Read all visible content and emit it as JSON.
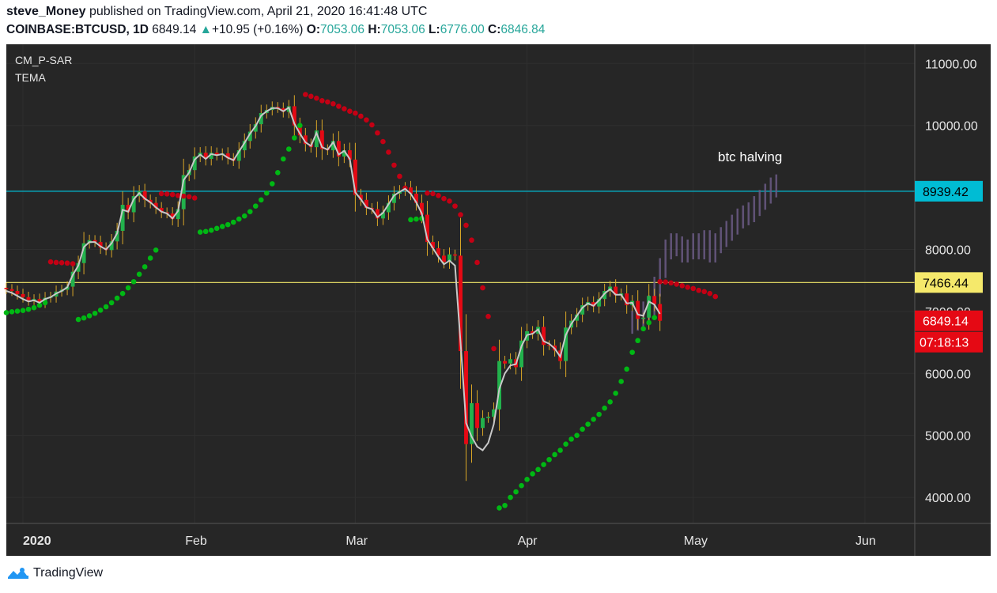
{
  "header": {
    "author": "steve_Money",
    "published_text": "published on TradingView.com, April 21, 2020 16:41:48 UTC",
    "symbol": "COINBASE:BTCUSD, 1D",
    "last": "6849.14",
    "change_arrow": "▲",
    "change": "+10.95 (+0.16%)",
    "o_label": "O:",
    "o_value": "7053.06",
    "h_label": "H:",
    "h_value": "7053.06",
    "l_label": "L:",
    "l_value": "6776.00",
    "c_label": "C:",
    "c_value": "6846.84"
  },
  "indicators": [
    "CM_P-SAR",
    "TEMA"
  ],
  "footer": {
    "logo_text": "TradingView",
    "logo_icon": "tradingview-logo-icon"
  },
  "colors": {
    "background": "#262626",
    "up": "#22b24c",
    "down": "#e50914",
    "sar_up": "#00b814",
    "sar_down": "#c40014",
    "tema": "#c8c8c8",
    "line_cyan": "#00bcd4",
    "line_yellow": "#f5e96b",
    "projection": "#6b5a85"
  },
  "chart_data": {
    "type": "candlestick",
    "title": "",
    "xlabel": "",
    "ylabel": "",
    "ylim": [
      3580,
      11310
    ],
    "y_ticks": [
      4000,
      5000,
      6000,
      7000,
      8000,
      10000,
      11000
    ],
    "x_ticks": [
      {
        "label": "2020",
        "date": "2020-01-01"
      },
      {
        "label": "Feb",
        "date": "2020-02-01"
      },
      {
        "label": "Mar",
        "date": "2020-03-01"
      },
      {
        "label": "Apr",
        "date": "2020-04-01"
      },
      {
        "label": "May",
        "date": "2020-05-01"
      },
      {
        "label": "Jun",
        "date": "2020-06-01"
      }
    ],
    "x_range": [
      "2019-12-29",
      "2020-06-10"
    ],
    "price_lines": [
      {
        "value": 8939.42,
        "label": "8939.42",
        "color": "#00bcd4"
      },
      {
        "value": 7466.44,
        "label": "7466.44",
        "color": "#f5e96b"
      }
    ],
    "last_price_label": "6849.14",
    "countdown_label": "07:18:13",
    "annotation": "btc halving",
    "series": [
      {
        "type": "candlestick",
        "start_date": "2019-12-29",
        "closes": [
          7360,
          7330,
          7280,
          7230,
          7180,
          7200,
          7150,
          7220,
          7240,
          7320,
          7350,
          7400,
          7640,
          7780,
          8100,
          8150,
          8120,
          8030,
          7990,
          8130,
          8300,
          8720,
          8600,
          8860,
          8940,
          8800,
          8750,
          8670,
          8600,
          8580,
          8490,
          8650,
          9200,
          9280,
          9500,
          9560,
          9460,
          9560,
          9520,
          9550,
          9470,
          9430,
          9600,
          9750,
          9900,
          10020,
          10200,
          10250,
          10300,
          10280,
          10220,
          10310,
          10000,
          9840,
          9700,
          9650,
          9920,
          9620,
          9600,
          9750,
          9500,
          9600,
          9450,
          8880,
          8800,
          8670,
          8650,
          8500,
          8600,
          8750,
          8900,
          8950,
          9000,
          8900,
          8750,
          8560,
          8120,
          8020,
          7900,
          7800,
          7920,
          7900,
          6360,
          4860,
          5520,
          5120,
          5280,
          5300,
          5420,
          6200,
          6160,
          6230,
          6100,
          6530,
          6680,
          6640,
          6750,
          6460,
          6450,
          6370,
          6200,
          6740,
          6850,
          6950,
          7100,
          7150,
          7080,
          7200,
          7330,
          7400,
          7260,
          7290,
          7100,
          7170,
          6880,
          6900,
          7250,
          7120,
          6849
        ]
      },
      {
        "type": "line",
        "name": "TEMA",
        "values": [
          7330,
          7300,
          7250,
          7200,
          7160,
          7180,
          7140,
          7200,
          7230,
          7290,
          7330,
          7390,
          7590,
          7740,
          8040,
          8120,
          8120,
          8050,
          8000,
          8100,
          8260,
          8640,
          8610,
          8810,
          8910,
          8820,
          8760,
          8680,
          8610,
          8580,
          8500,
          8620,
          9120,
          9240,
          9450,
          9530,
          9460,
          9540,
          9520,
          9540,
          9480,
          9440,
          9580,
          9720,
          9870,
          9990,
          10160,
          10230,
          10280,
          10280,
          10230,
          10290,
          10030,
          9870,
          9730,
          9670,
          9880,
          9650,
          9610,
          9730,
          9530,
          9590,
          9460,
          8920,
          8810,
          8680,
          8650,
          8520,
          8590,
          8730,
          8870,
          8930,
          8980,
          8900,
          8760,
          8580,
          8160,
          8020,
          7880,
          7760,
          7820,
          7740,
          6500,
          5200,
          4980,
          4820,
          4760,
          4880,
          5180,
          5750,
          6000,
          6130,
          6150,
          6440,
          6620,
          6640,
          6710,
          6520,
          6480,
          6400,
          6270,
          6620,
          6800,
          6930,
          7060,
          7130,
          7090,
          7180,
          7290,
          7360,
          7270,
          7270,
          7130,
          7140,
          6950,
          6930,
          7160,
          7110,
          6960
        ]
      },
      {
        "type": "sar",
        "name": "CM_P-SAR",
        "dots": [
          {
            "from": "2019-12-29",
            "values": [
              6980,
              6995,
              7005,
              7015,
              7035,
              7060,
              7100,
              7140
            ]
          },
          {
            "from": "2020-01-06",
            "values": [
              7800,
              7790,
              7785,
              7780,
              7770
            ]
          },
          {
            "from": "2020-01-11",
            "values": [
              6870,
              6895,
              6930,
              6970,
              7020,
              7075,
              7140,
              7215,
              7290,
              7380,
              7480,
              7600,
              7720,
              7860,
              7990
            ]
          },
          {
            "from": "2020-01-26",
            "values": [
              8900,
              8895,
              8885,
              8870,
              8860,
              8850,
              8830
            ]
          },
          {
            "from": "2020-02-02",
            "values": [
              8280,
              8290,
              8310,
              8340,
              8370,
              8400,
              8440,
              8490,
              8540,
              8610,
              8700,
              8800,
              8910,
              9060,
              9240,
              9460,
              9620,
              9800,
              10000
            ]
          },
          {
            "from": "2020-02-21",
            "values": [
              10500,
              10470,
              10440,
              10400,
              10380,
              10350,
              10310,
              10270,
              10230,
              10200,
              10150,
              10090,
              10010,
              9880,
              9740,
              9570,
              9360,
              9180,
              8990
            ]
          },
          {
            "from": "2020-03-11",
            "values": [
              8480,
              8490,
              8500
            ]
          },
          {
            "from": "2020-03-14",
            "values": [
              8910,
              8900,
              8870,
              8820,
              8780,
              8700,
              8560,
              8390,
              8150,
              7790,
              7380,
              6920,
              6400
            ]
          },
          {
            "from": "2020-03-27",
            "values": [
              3830,
              3870,
              4000,
              4090,
              4190,
              4290,
              4380,
              4450,
              4530,
              4610,
              4690,
              4760,
              4860,
              4940,
              5000,
              5100,
              5180,
              5260,
              5340,
              5440,
              5540,
              5680,
              5870,
              6070,
              6340,
              6530,
              6720,
              6820,
              6900
            ]
          },
          {
            "from": "2020-04-25",
            "values": [
              7480,
              7475,
              7460,
              7440,
              7415,
              7390,
              7370,
              7340,
              7320,
              7290,
              7240
            ]
          }
        ]
      },
      {
        "type": "projection",
        "name": "projection",
        "start_date": "2020-04-20",
        "closes": [
          6850,
          6900,
          7000,
          7100,
          7400,
          7700,
          8000,
          8100,
          8050,
          7950,
          8000,
          8100,
          8000,
          8150,
          7950,
          8100,
          8200,
          8300,
          8400,
          8500,
          8550,
          8600,
          8700,
          8800,
          8900,
          9000,
          9050
        ]
      }
    ]
  }
}
